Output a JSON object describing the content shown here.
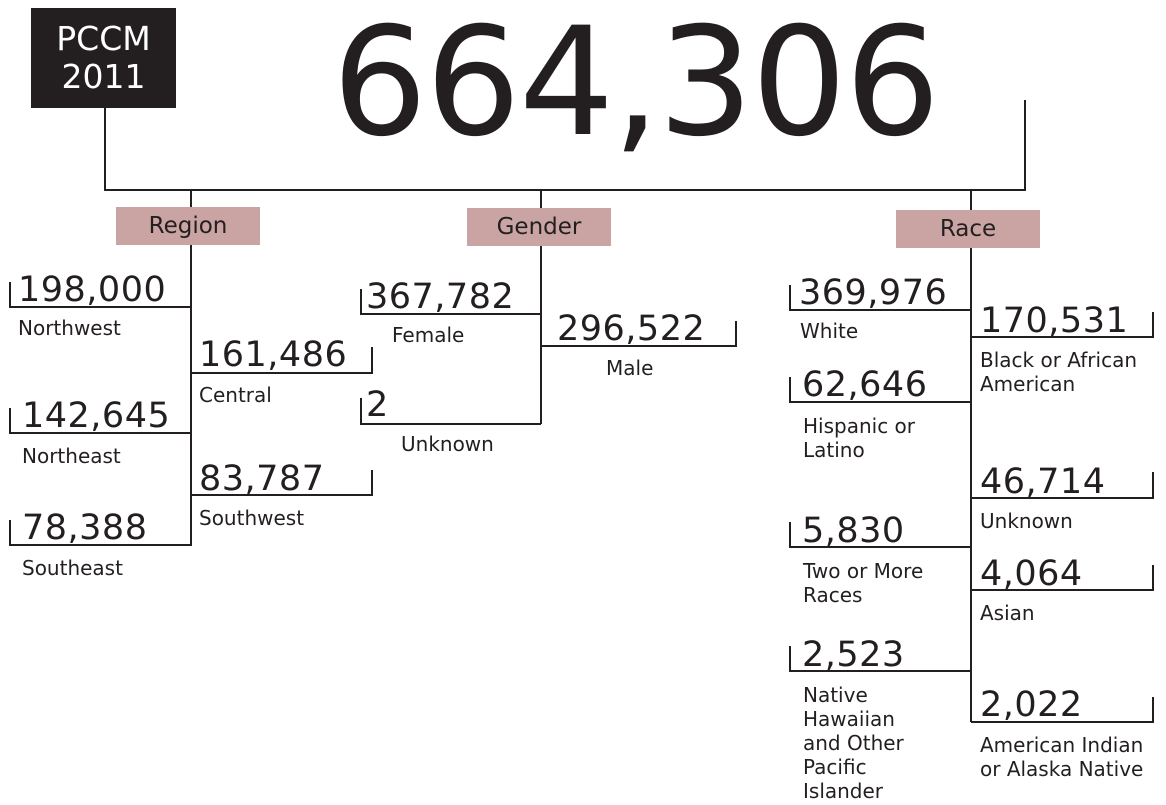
{
  "badge": {
    "line1": "PCCM",
    "line2": "2011"
  },
  "total": "664,306",
  "categories": {
    "region": {
      "label": "Region",
      "items": {
        "northwest": {
          "value": "198,000",
          "label": "Northwest"
        },
        "central": {
          "value": "161,486",
          "label": "Central"
        },
        "northeast": {
          "value": "142,645",
          "label": "Northeast"
        },
        "southwest": {
          "value": "83,787",
          "label": "Southwest"
        },
        "southeast": {
          "value": "78,388",
          "label": "Southeast"
        }
      }
    },
    "gender": {
      "label": "Gender",
      "items": {
        "female": {
          "value": "367,782",
          "label": "Female"
        },
        "male": {
          "value": "296,522",
          "label": "Male"
        },
        "unknown": {
          "value": "2",
          "label": "Unknown"
        }
      }
    },
    "race": {
      "label": "Race",
      "items": {
        "white": {
          "value": "369,976",
          "label": "White"
        },
        "black": {
          "value": "170,531",
          "label": "Black or African American"
        },
        "hispanic": {
          "value": "62,646",
          "label": "Hispanic or Latino"
        },
        "unknown": {
          "value": "46,714",
          "label": "Unknown"
        },
        "two_or_more": {
          "value": "5,830",
          "label": "Two or More Races"
        },
        "asian": {
          "value": "4,064",
          "label": "Asian"
        },
        "native_hawaiian": {
          "value": "2,523",
          "label": "Native Hawaiian and Other Pacific Islander"
        },
        "american_indian": {
          "value": "2,022",
          "label": "American Indian or Alaska Native"
        }
      }
    }
  }
}
